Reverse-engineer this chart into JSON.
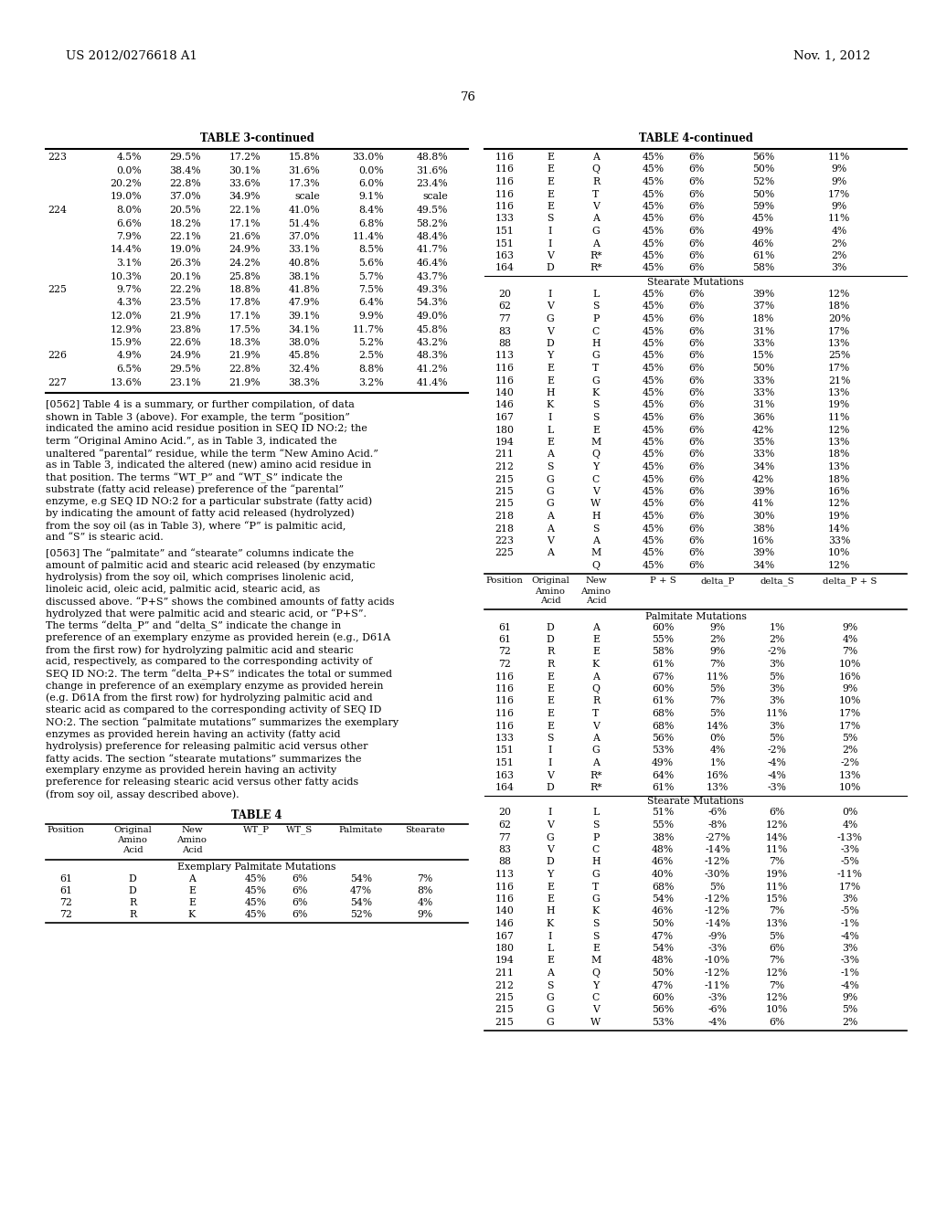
{
  "page_number": "76",
  "left_header": "US 2012/0276618 A1",
  "right_header": "Nov. 1, 2012",
  "table3_continued_title": "TABLE 3-continued",
  "table3_rows": [
    [
      "223",
      "4.5%",
      "29.5%",
      "17.2%",
      "15.8%",
      "33.0%",
      "48.8%"
    ],
    [
      "",
      "0.0%",
      "38.4%",
      "30.1%",
      "31.6%",
      "0.0%",
      "31.6%"
    ],
    [
      "",
      "20.2%",
      "22.8%",
      "33.6%",
      "17.3%",
      "6.0%",
      "23.4%"
    ],
    [
      "",
      "19.0%",
      "37.0%",
      "34.9%",
      "scale",
      "9.1%",
      "scale"
    ],
    [
      "224",
      "8.0%",
      "20.5%",
      "22.1%",
      "41.0%",
      "8.4%",
      "49.5%"
    ],
    [
      "",
      "6.6%",
      "18.2%",
      "17.1%",
      "51.4%",
      "6.8%",
      "58.2%"
    ],
    [
      "",
      "7.9%",
      "22.1%",
      "21.6%",
      "37.0%",
      "11.4%",
      "48.4%"
    ],
    [
      "",
      "14.4%",
      "19.0%",
      "24.9%",
      "33.1%",
      "8.5%",
      "41.7%"
    ],
    [
      "",
      "3.1%",
      "26.3%",
      "24.2%",
      "40.8%",
      "5.6%",
      "46.4%"
    ],
    [
      "",
      "10.3%",
      "20.1%",
      "25.8%",
      "38.1%",
      "5.7%",
      "43.7%"
    ],
    [
      "225",
      "9.7%",
      "22.2%",
      "18.8%",
      "41.8%",
      "7.5%",
      "49.3%"
    ],
    [
      "",
      "4.3%",
      "23.5%",
      "17.8%",
      "47.9%",
      "6.4%",
      "54.3%"
    ],
    [
      "",
      "12.0%",
      "21.9%",
      "17.1%",
      "39.1%",
      "9.9%",
      "49.0%"
    ],
    [
      "",
      "12.9%",
      "23.8%",
      "17.5%",
      "34.1%",
      "11.7%",
      "45.8%"
    ],
    [
      "",
      "15.9%",
      "22.6%",
      "18.3%",
      "38.0%",
      "5.2%",
      "43.2%"
    ],
    [
      "226",
      "4.9%",
      "24.9%",
      "21.9%",
      "45.8%",
      "2.5%",
      "48.3%"
    ],
    [
      "",
      "6.5%",
      "29.5%",
      "22.8%",
      "32.4%",
      "8.8%",
      "41.2%"
    ],
    [
      "227",
      "13.6%",
      "23.1%",
      "21.9%",
      "38.3%",
      "3.2%",
      "41.4%"
    ]
  ],
  "paragraph_0562": "[0562]   Table 4 is a summary, or further compilation, of data shown in Table 3 (above). For example, the term “position” indicated the amino acid residue position in SEQ ID NO:2; the term “Original Amino Acid.”, as in Table 3, indicated the unaltered “parental” residue, while the term “New Amino Acid.” as in Table 3, indicated the altered (new) amino acid residue in that position. The terms “WT_P” and “WT_S” indicate the substrate (fatty acid release) preference of the “parental” enzyme, e.g SEQ ID NO:2 for a particular substrate (fatty acid) by indicating the amount of fatty acid released (hydrolyzed) from the soy oil (as in Table 3), where “P” is palmitic acid, and “S” is stearic acid.",
  "paragraph_0563": "[0563]   The “palmitate” and “stearate” columns indicate the amount of palmitic acid and stearic acid released (by enzymatic hydrolysis) from the soy oil, which comprises linolenic acid, linoleic acid, oleic acid, palmitic acid, stearic acid, as discussed above. “P+S” shows the combined amounts of fatty acids hydrolyzed that were palmitic acid and stearic acid, or “P+S”. The terms “delta_P” and “delta_S” indicate the change in preference of an exemplary enzyme as provided herein (e.g., D61A from the first row) for hydrolyzing palmitic acid and stearic acid, respectively, as compared to the corresponding activity of SEQ ID NO:2. The term “delta_P+S” indicates the total or summed change in preference of an exemplary enzyme as provided herein (e.g. D61A from the first row) for hydrolyzing palmitic acid and stearic acid as compared to the corresponding activity of SEQ ID NO:2. The section “palmitate mutations” summarizes the exemplary enzymes as provided herein having an activity (fatty acid hydrolysis) preference for releasing palmitic acid versus other fatty acids. The section “stearate mutations” summarizes the exemplary enzyme as provided herein having an activity preference for releasing stearic acid versus other fatty acids (from soy oil, assay described above).",
  "table4_title": "TABLE 4",
  "table4_headers": [
    "Position",
    "Original\nAmino\nAcid",
    "New\nAmino\nAcid",
    "WT_P",
    "WT_S",
    "Palmitate",
    "Stearate"
  ],
  "table4_section1": "Exemplary Palmitate Mutations",
  "table4_rows_palmitate": [
    [
      "61",
      "D",
      "A",
      "45%",
      "6%",
      "54%",
      "7%"
    ],
    [
      "61",
      "D",
      "E",
      "45%",
      "6%",
      "47%",
      "8%"
    ],
    [
      "72",
      "R",
      "E",
      "45%",
      "6%",
      "54%",
      "4%"
    ],
    [
      "72",
      "R",
      "K",
      "45%",
      "6%",
      "52%",
      "9%"
    ]
  ],
  "table4cont_title": "TABLE 4-continued",
  "table4cont_palmitate_rows": [
    [
      "116",
      "E",
      "A",
      "45%",
      "6%",
      "56%",
      "11%"
    ],
    [
      "116",
      "E",
      "Q",
      "45%",
      "6%",
      "50%",
      "9%"
    ],
    [
      "116",
      "E",
      "R",
      "45%",
      "6%",
      "52%",
      "9%"
    ],
    [
      "116",
      "E",
      "T",
      "45%",
      "6%",
      "50%",
      "17%"
    ],
    [
      "116",
      "E",
      "V",
      "45%",
      "6%",
      "59%",
      "9%"
    ],
    [
      "133",
      "S",
      "A",
      "45%",
      "6%",
      "45%",
      "11%"
    ],
    [
      "151",
      "I",
      "G",
      "45%",
      "6%",
      "49%",
      "4%"
    ],
    [
      "151",
      "I",
      "A",
      "45%",
      "6%",
      "46%",
      "2%"
    ],
    [
      "163",
      "V",
      "R*",
      "45%",
      "6%",
      "61%",
      "2%"
    ],
    [
      "164",
      "D",
      "R*",
      "45%",
      "6%",
      "58%",
      "3%"
    ]
  ],
  "table4cont_stearate_label": "Stearate Mutations",
  "table4cont_stearate_rows": [
    [
      "20",
      "I",
      "L",
      "45%",
      "6%",
      "39%",
      "12%"
    ],
    [
      "62",
      "V",
      "S",
      "45%",
      "6%",
      "37%",
      "18%"
    ],
    [
      "77",
      "G",
      "P",
      "45%",
      "6%",
      "18%",
      "20%"
    ],
    [
      "83",
      "V",
      "C",
      "45%",
      "6%",
      "31%",
      "17%"
    ],
    [
      "88",
      "D",
      "H",
      "45%",
      "6%",
      "33%",
      "13%"
    ],
    [
      "113",
      "Y",
      "G",
      "45%",
      "6%",
      "15%",
      "25%"
    ],
    [
      "116",
      "E",
      "T",
      "45%",
      "6%",
      "50%",
      "17%"
    ],
    [
      "116",
      "E",
      "G",
      "45%",
      "6%",
      "33%",
      "21%"
    ],
    [
      "140",
      "H",
      "K",
      "45%",
      "6%",
      "33%",
      "13%"
    ],
    [
      "146",
      "K",
      "S",
      "45%",
      "6%",
      "31%",
      "19%"
    ],
    [
      "167",
      "I",
      "S",
      "45%",
      "6%",
      "36%",
      "11%"
    ],
    [
      "180",
      "L",
      "E",
      "45%",
      "6%",
      "42%",
      "12%"
    ],
    [
      "194",
      "E",
      "M",
      "45%",
      "6%",
      "35%",
      "13%"
    ],
    [
      "211",
      "A",
      "Q",
      "45%",
      "6%",
      "33%",
      "18%"
    ],
    [
      "212",
      "S",
      "Y",
      "45%",
      "6%",
      "34%",
      "13%"
    ],
    [
      "215",
      "G",
      "C",
      "45%",
      "6%",
      "42%",
      "18%"
    ],
    [
      "215",
      "G",
      "V",
      "45%",
      "6%",
      "39%",
      "16%"
    ],
    [
      "215",
      "G",
      "W",
      "45%",
      "6%",
      "41%",
      "12%"
    ],
    [
      "218",
      "A",
      "H",
      "45%",
      "6%",
      "30%",
      "19%"
    ],
    [
      "218",
      "A",
      "S",
      "45%",
      "6%",
      "38%",
      "14%"
    ],
    [
      "223",
      "V",
      "A",
      "45%",
      "6%",
      "16%",
      "33%"
    ],
    [
      "225",
      "A",
      "M",
      "45%",
      "6%",
      "39%",
      "10%"
    ],
    [
      "",
      "",
      "Q",
      "45%",
      "6%",
      "34%",
      "12%"
    ]
  ],
  "table4b_headers": [
    "Position",
    "Original\nAmino\nAcid",
    "New\nAmino\nAcid",
    "P + S",
    "delta_P",
    "delta_S",
    "delta_P + S"
  ],
  "table4b_section1": "Palmitate Mutations",
  "table4b_palmitate_rows": [
    [
      "61",
      "D",
      "A",
      "60%",
      "9%",
      "1%",
      "9%"
    ],
    [
      "61",
      "D",
      "E",
      "55%",
      "2%",
      "2%",
      "4%"
    ],
    [
      "72",
      "R",
      "E",
      "58%",
      "9%",
      "-2%",
      "7%"
    ],
    [
      "72",
      "R",
      "K",
      "61%",
      "7%",
      "3%",
      "10%"
    ],
    [
      "116",
      "E",
      "A",
      "67%",
      "11%",
      "5%",
      "16%"
    ],
    [
      "116",
      "E",
      "Q",
      "60%",
      "5%",
      "3%",
      "9%"
    ],
    [
      "116",
      "E",
      "R",
      "61%",
      "7%",
      "3%",
      "10%"
    ],
    [
      "116",
      "E",
      "T",
      "68%",
      "5%",
      "11%",
      "17%"
    ],
    [
      "116",
      "E",
      "V",
      "68%",
      "14%",
      "3%",
      "17%"
    ],
    [
      "133",
      "S",
      "A",
      "56%",
      "0%",
      "5%",
      "5%"
    ],
    [
      "151",
      "I",
      "G",
      "53%",
      "4%",
      "-2%",
      "2%"
    ],
    [
      "151",
      "I",
      "A",
      "49%",
      "1%",
      "-4%",
      "-2%"
    ],
    [
      "163",
      "V",
      "R*",
      "64%",
      "16%",
      "-4%",
      "13%"
    ],
    [
      "164",
      "D",
      "R*",
      "61%",
      "13%",
      "-3%",
      "10%"
    ]
  ],
  "table4b_stearate_label": "Stearate Mutations",
  "table4b_stearate_rows": [
    [
      "20",
      "I",
      "L",
      "51%",
      "-6%",
      "6%",
      "0%"
    ],
    [
      "62",
      "V",
      "S",
      "55%",
      "-8%",
      "12%",
      "4%"
    ],
    [
      "77",
      "G",
      "P",
      "38%",
      "-27%",
      "14%",
      "-13%"
    ],
    [
      "83",
      "V",
      "C",
      "48%",
      "-14%",
      "11%",
      "-3%"
    ],
    [
      "88",
      "D",
      "H",
      "46%",
      "-12%",
      "7%",
      "-5%"
    ],
    [
      "113",
      "Y",
      "G",
      "40%",
      "-30%",
      "19%",
      "-11%"
    ],
    [
      "116",
      "E",
      "T",
      "68%",
      "5%",
      "11%",
      "17%"
    ],
    [
      "116",
      "E",
      "G",
      "54%",
      "-12%",
      "15%",
      "3%"
    ],
    [
      "140",
      "H",
      "K",
      "46%",
      "-12%",
      "7%",
      "-5%"
    ],
    [
      "146",
      "K",
      "S",
      "50%",
      "-14%",
      "13%",
      "-1%"
    ],
    [
      "167",
      "I",
      "S",
      "47%",
      "-9%",
      "5%",
      "-4%"
    ],
    [
      "180",
      "L",
      "E",
      "54%",
      "-3%",
      "6%",
      "3%"
    ],
    [
      "194",
      "E",
      "M",
      "48%",
      "-10%",
      "7%",
      "-3%"
    ],
    [
      "211",
      "A",
      "Q",
      "50%",
      "-12%",
      "12%",
      "-1%"
    ],
    [
      "212",
      "S",
      "Y",
      "47%",
      "-11%",
      "7%",
      "-4%"
    ],
    [
      "215",
      "G",
      "C",
      "60%",
      "-3%",
      "12%",
      "9%"
    ],
    [
      "215",
      "G",
      "V",
      "56%",
      "-6%",
      "10%",
      "5%"
    ],
    [
      "215",
      "G",
      "W",
      "53%",
      "-4%",
      "6%",
      "2%"
    ]
  ]
}
